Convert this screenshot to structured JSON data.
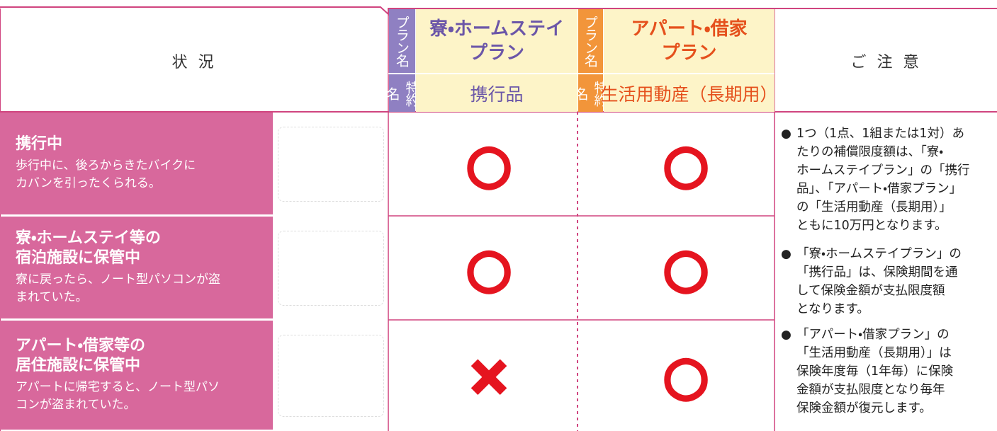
{
  "header": {
    "situation": "状 況",
    "plan_label": "プラン名",
    "rider_label": "特約名",
    "notes_header": "ご 注 意",
    "plans": [
      {
        "name_lines": [
          "寮・ホームステイ",
          "プラン"
        ],
        "rider": "携行品"
      },
      {
        "name_lines": [
          "アパート・借家",
          "プラン"
        ],
        "rider": "生活用動産（長期用）"
      }
    ]
  },
  "rows": [
    {
      "title_lines": [
        "携行中"
      ],
      "description_lines": [
        "歩行中に、後ろからきたバイクに",
        "カバンを引ったくられる。"
      ],
      "marks": [
        "○",
        "○"
      ]
    },
    {
      "title_lines": [
        "寮・ホームステイ等の",
        "宿泊施設に保管中"
      ],
      "description_lines": [
        "寮に戻ったら、ノート型パソコンが盗",
        "まれていた。"
      ],
      "marks": [
        "○",
        "○"
      ]
    },
    {
      "title_lines": [
        "アパート・借家等の",
        "居住施設に保管中"
      ],
      "description_lines": [
        "アパートに帰宅すると、ノート型パソ",
        "コンが盗まれていた。"
      ],
      "marks": [
        "×",
        "○"
      ]
    }
  ],
  "notes": [
    {
      "lines": [
        "1つ（1点、1組または1対）あ",
        "たりの補償限度額は、「寮・",
        "ホームステイプラン」の「携行",
        "品」、「アパート・借家プラン」",
        "の「生活用動産（長期用）」",
        "ともに10万円となります。"
      ]
    },
    {
      "lines": [
        "「寮・ホームステイプラン」の",
        "「携行品」は、保険期間を通",
        "して保険金額が支払限度額",
        "となります。"
      ]
    },
    {
      "lines": [
        "「アパート・借家プラン」の",
        "「生活用動産（長期用）」は",
        "保険年度毎（1年毎）に保険",
        "金額が支払限度となり毎年",
        "保険金額が復元します。"
      ]
    }
  ]
}
